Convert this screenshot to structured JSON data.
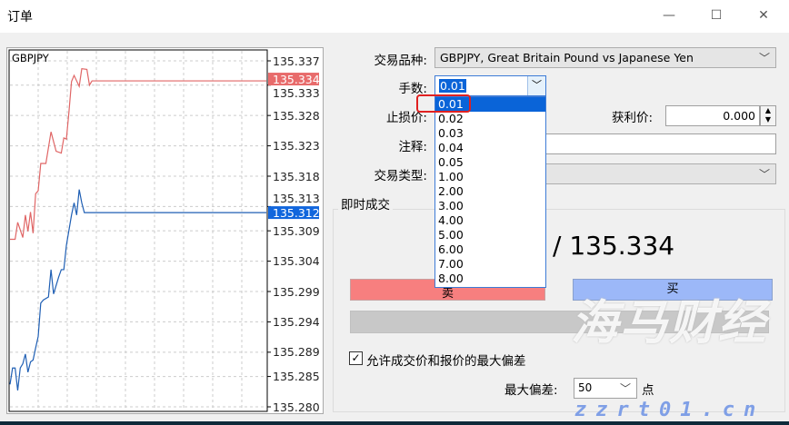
{
  "window": {
    "title": "订单",
    "minimize": "—",
    "maximize": "☐",
    "close": "✕"
  },
  "chart": {
    "symbol": "GBPJPY",
    "ask_label": "135.334",
    "bid_label": "135.312",
    "y_ticks": [
      "135.337",
      "135.333",
      "135.328",
      "135.323",
      "135.318",
      "135.313",
      "135.309",
      "135.304",
      "135.299",
      "135.294",
      "135.289",
      "135.285",
      "135.280"
    ],
    "colors": {
      "ask": "#e06666",
      "bid": "#1f5fb4",
      "ask_badge": "#e86b6b",
      "bid_badge": "#1166dd"
    }
  },
  "chart_data": {
    "type": "line",
    "ylim": [
      135.28,
      135.337
    ],
    "grid": true,
    "series": [
      {
        "color": "#e06666",
        "x": [
          0,
          2,
          3,
          5,
          6,
          7,
          8,
          9,
          10,
          11,
          12,
          14,
          16,
          18,
          20,
          21,
          22,
          23,
          24,
          25,
          27,
          28,
          30,
          31,
          32,
          100
        ],
        "values": [
          135.3076,
          135.3076,
          135.3104,
          135.3079,
          135.3116,
          135.3089,
          135.3121,
          135.3086,
          135.3151,
          135.3156,
          135.3201,
          135.3201,
          135.3253,
          135.3221,
          135.3218,
          135.3243,
          135.3241,
          135.3286,
          135.3336,
          135.3346,
          135.3328,
          135.3357,
          135.3356,
          135.333,
          135.3337,
          135.3337
        ]
      },
      {
        "color": "#1f5fb4",
        "x": [
          0,
          1,
          2,
          3,
          4,
          5,
          6,
          7,
          8,
          9,
          10,
          11,
          12,
          13,
          15,
          16,
          17,
          19,
          20,
          21,
          22,
          23,
          24,
          25,
          26,
          27,
          28,
          29,
          100
        ],
        "values": [
          135.2837,
          135.2864,
          135.2864,
          135.2827,
          135.2864,
          135.2871,
          135.2887,
          135.2857,
          135.2874,
          135.2877,
          135.2897,
          135.2916,
          135.2971,
          135.2976,
          135.2981,
          135.3026,
          135.2986,
          135.3014,
          135.3026,
          135.3026,
          135.3066,
          135.3091,
          135.3116,
          135.3136,
          135.3116,
          135.3158,
          135.3136,
          135.312,
          135.312
        ]
      }
    ]
  },
  "form": {
    "symbol_label": "交易品种:",
    "symbol_value": "GBPJPY, Great Britain Pound vs Japanese Yen",
    "volume_label": "手数:",
    "volume_value": "0.01",
    "volume_options": [
      "0.01",
      "0.02",
      "0.03",
      "0.04",
      "0.05",
      "1.00",
      "2.00",
      "3.00",
      "4.00",
      "5.00",
      "6.00",
      "7.00",
      "8.00"
    ],
    "stoploss_label": "止损价:",
    "takeprofit_label": "获利价:",
    "takeprofit_value": "0.000",
    "comment_label": "注释:",
    "type_label": "交易类型:"
  },
  "instant": {
    "group_label": "即时成交",
    "price": "/ 135.334",
    "sell_label": "卖",
    "buy_label": "买",
    "deviation_check_label": "允许成交价和报价的最大偏差",
    "deviation_checked": true,
    "max_deviation_label": "最大偏差:",
    "max_deviation_value": "50",
    "points_label": "点"
  },
  "watermark": {
    "text": "海马财经",
    "url": "zzrt01.cn"
  }
}
